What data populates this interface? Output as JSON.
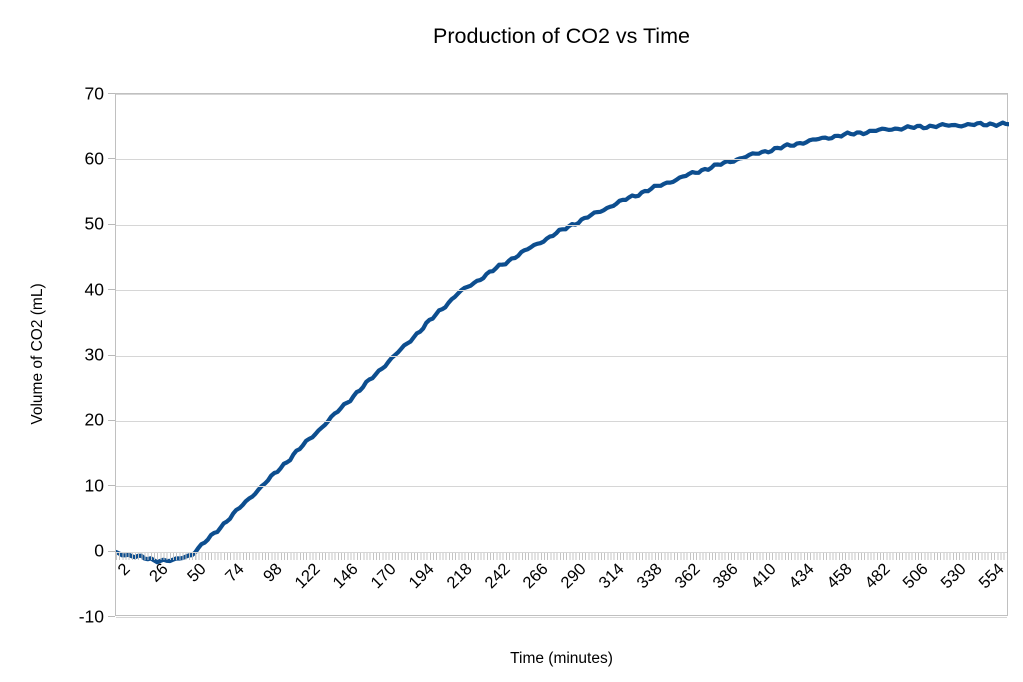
{
  "chart_data": {
    "type": "line",
    "title": "Production of CO2 vs Time",
    "xlabel": "Time (minutes)",
    "ylabel": "Volume of CO2 (mL)",
    "legend": "none",
    "grid": "horizontal",
    "x_axis": {
      "tick_labels": [
        "2",
        "26",
        "50",
        "74",
        "98",
        "122",
        "146",
        "170",
        "194",
        "218",
        "242",
        "266",
        "290",
        "314",
        "338",
        "362",
        "386",
        "410",
        "434",
        "458",
        "482",
        "506",
        "530",
        "554"
      ],
      "major_tick_interval_minutes": 24,
      "minor_tick_interval_minutes": 2,
      "range": [
        2,
        566
      ],
      "label_rotation_deg": 45
    },
    "y_axis": {
      "ticks": [
        70,
        60,
        50,
        40,
        30,
        20,
        10,
        0,
        -10
      ],
      "range": [
        -10,
        70
      ]
    },
    "series": [
      {
        "name": "Volume of CO2",
        "color": "#0d4e8f",
        "x": [
          2,
          14,
          26,
          38,
          50,
          62,
          74,
          86,
          98,
          110,
          122,
          134,
          146,
          158,
          170,
          182,
          194,
          206,
          218,
          230,
          242,
          254,
          266,
          278,
          290,
          302,
          314,
          326,
          338,
          350,
          362,
          374,
          386,
          398,
          410,
          422,
          434,
          446,
          458,
          470,
          482,
          494,
          506,
          518,
          530,
          542,
          554,
          566
        ],
        "y": [
          -0.2,
          -0.7,
          -1.3,
          -1.4,
          -0.4,
          2.3,
          5.2,
          8.1,
          10.9,
          13.8,
          16.7,
          19.5,
          22.4,
          25.2,
          28.1,
          30.9,
          33.8,
          36.7,
          39.5,
          41.4,
          43.3,
          45.1,
          46.8,
          48.4,
          50.0,
          51.4,
          52.8,
          54.1,
          55.3,
          56.4,
          57.5,
          58.5,
          59.4,
          60.3,
          61.1,
          61.8,
          62.5,
          63.1,
          63.6,
          64.0,
          64.4,
          64.7,
          64.9,
          65.1,
          65.2,
          65.3,
          65.4,
          65.4
        ]
      }
    ]
  },
  "colors": {
    "series_line": "#0d4e8f",
    "gridline": "#d6d6d6",
    "axis": "#c0c0c0",
    "text": "#000000",
    "background": "#ffffff"
  }
}
